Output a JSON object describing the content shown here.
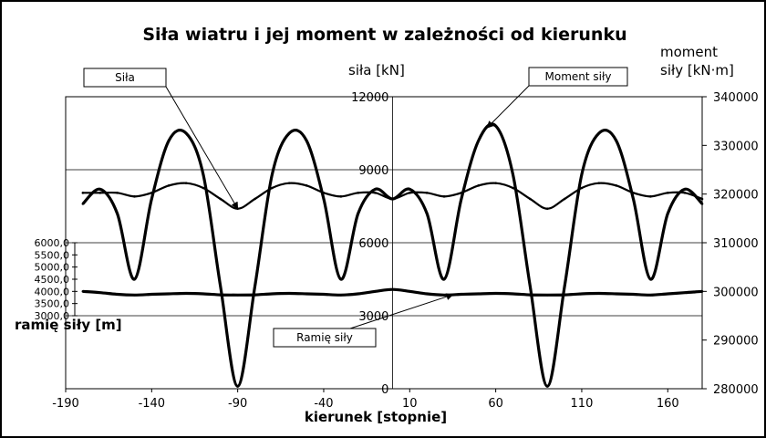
{
  "chart_data": {
    "type": "line",
    "title": "Siła wiatru i jej moment w zależności od kierunku",
    "xlabel": "kierunek [stopnie]",
    "y_left_label": "siła [kN]",
    "y_right_label_line1": "moment",
    "y_right_label_line2": "siły [kN·m]",
    "y_inset_label": "ramię siły [m]",
    "xlim": [
      -190,
      180
    ],
    "ylim_left": [
      0,
      12000
    ],
    "ylim_right": [
      280000,
      340000
    ],
    "ylim_inset": [
      3000,
      6000
    ],
    "x_ticks": [
      "-190",
      "-140",
      "-90",
      "-40",
      "10",
      "60",
      "110",
      "160"
    ],
    "y_left_ticks": [
      "0",
      "3000",
      "6000",
      "9000",
      "12000"
    ],
    "y_right_ticks": [
      "280000",
      "290000",
      "300000",
      "310000",
      "320000",
      "330000",
      "340000"
    ],
    "y_inset_ticks": [
      "3000,0",
      "3500,0",
      "4000,0",
      "4500,0",
      "5000,0",
      "5500,0",
      "6000,0"
    ],
    "gridlines": "horizontal",
    "series": [
      {
        "name": "Siła",
        "axis": "left",
        "x": [
          -180,
          -170,
          -160,
          -150,
          -140,
          -130,
          -120,
          -110,
          -100,
          -90,
          -80,
          -70,
          -60,
          -50,
          -40,
          -30,
          -20,
          -10,
          0,
          10,
          20,
          30,
          40,
          50,
          60,
          70,
          80,
          90,
          100,
          110,
          120,
          130,
          140,
          150,
          160,
          170,
          180
        ],
        "y": [
          8050,
          8050,
          8050,
          7900,
          8050,
          8350,
          8450,
          8250,
          7800,
          7400,
          7800,
          8250,
          8450,
          8350,
          8050,
          7900,
          8050,
          8050,
          7800,
          8050,
          8050,
          7900,
          8050,
          8350,
          8450,
          8250,
          7800,
          7400,
          7800,
          8250,
          8450,
          8350,
          8050,
          7900,
          8050,
          8050,
          7800
        ]
      },
      {
        "name": "Moment siły",
        "axis": "right",
        "x": [
          -180,
          -170,
          -160,
          -150,
          -140,
          -130,
          -120,
          -110,
          -100,
          -90,
          -80,
          -70,
          -60,
          -50,
          -40,
          -30,
          -20,
          -10,
          0,
          10,
          20,
          30,
          40,
          50,
          60,
          70,
          80,
          90,
          100,
          110,
          120,
          130,
          140,
          150,
          160,
          170,
          180
        ],
        "y": [
          318000,
          321000,
          316000,
          302500,
          319000,
          331000,
          332500,
          324000,
          301000,
          280500,
          301000,
          324000,
          332500,
          331000,
          319000,
          302500,
          316000,
          321000,
          319000,
          321000,
          316000,
          302500,
          319000,
          331000,
          334000,
          324000,
          301000,
          280500,
          301000,
          324000,
          332500,
          331000,
          319000,
          302500,
          316000,
          321000,
          318000
        ]
      },
      {
        "name": "Ramię siły",
        "axis": "inset",
        "x": [
          -180,
          -170,
          -160,
          -150,
          -140,
          -130,
          -120,
          -110,
          -100,
          -90,
          -80,
          -70,
          -60,
          -50,
          -40,
          -30,
          -20,
          -10,
          0,
          10,
          20,
          30,
          40,
          50,
          60,
          70,
          80,
          90,
          100,
          110,
          120,
          130,
          140,
          150,
          160,
          170,
          180
        ],
        "y": [
          4000,
          3950,
          3880,
          3850,
          3880,
          3900,
          3920,
          3900,
          3860,
          3850,
          3860,
          3900,
          3920,
          3900,
          3880,
          3850,
          3900,
          4000,
          4080,
          4000,
          3900,
          3850,
          3880,
          3900,
          3920,
          3900,
          3860,
          3850,
          3860,
          3900,
          3920,
          3900,
          3880,
          3850,
          3900,
          3950,
          4000
        ]
      }
    ],
    "annotations": [
      {
        "text": "Siła",
        "target_series": 0,
        "target_x": -90
      },
      {
        "text": "Moment siły",
        "target_series": 1,
        "target_x": 55
      },
      {
        "text": "Ramię siły",
        "target_series": 2,
        "target_x": 35
      }
    ]
  }
}
